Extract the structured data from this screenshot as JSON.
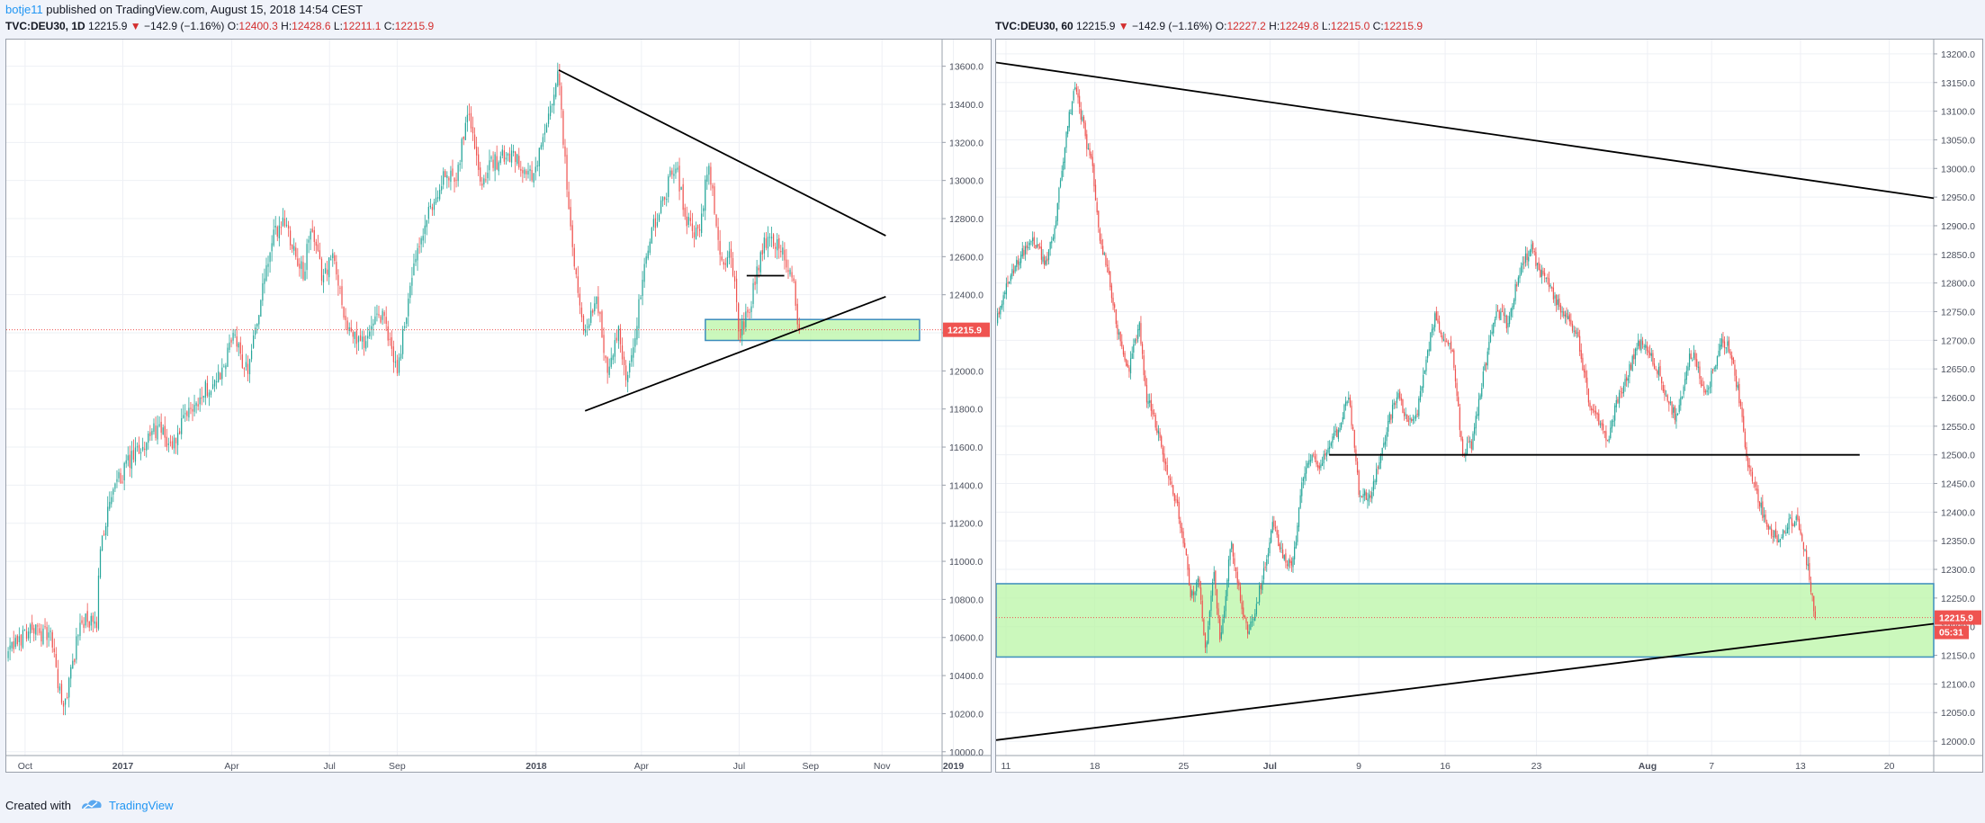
{
  "header": {
    "author": "botje11",
    "published_text": " published on TradingView.com, August 15, 2018 14:54 CEST"
  },
  "footer": {
    "created_with": "Created with",
    "brand": "TradingView"
  },
  "colors": {
    "up": "#26a69a",
    "down": "#ef5350",
    "zone_fill": "#b9f6a5",
    "zone_border": "#3c8dbc",
    "price_tag": "#ef5350"
  },
  "panels": [
    {
      "symbol": "TVC:DEU30, 1D",
      "last": "12215.9",
      "arrow": "▼",
      "change": "−142.9 (−1.16%)",
      "o_label": "O:",
      "o": "12400.3",
      "h_label": "H:",
      "h": "12428.6",
      "l_label": "L:",
      "l": "12211.1",
      "c_label": "C:",
      "c": "12215.9",
      "price_tag": "12215.9"
    },
    {
      "symbol": "TVC:DEU30, 60",
      "last": "12215.9",
      "arrow": "▼",
      "change": "−142.9 (−1.16%)",
      "o_label": "O:",
      "o": "12227.2",
      "h_label": "H:",
      "h": "12249.8",
      "l_label": "L:",
      "l": "12215.0",
      "c_label": "C:",
      "c": "12215.9",
      "price_tag": "12215.9",
      "countdown": "05:31"
    }
  ],
  "chart_data": [
    {
      "type": "candlestick",
      "interval": "1D",
      "ylim": [
        9980,
        13740
      ],
      "xlim": [
        0,
        24.9
      ],
      "y_ticks": [
        "10000.0",
        "10200.0",
        "10400.0",
        "10600.0",
        "10800.0",
        "11000.0",
        "11200.0",
        "11400.0",
        "11600.0",
        "11800.0",
        "12000.0",
        "12200.0",
        "12400.0",
        "12600.0",
        "12800.0",
        "13000.0",
        "13200.0",
        "13400.0",
        "13600.0"
      ],
      "x_ticks": [
        {
          "label": "Oct",
          "x": 0.5,
          "bold": false
        },
        {
          "label": "2017",
          "x": 3.1,
          "bold": true
        },
        {
          "label": "Apr",
          "x": 6.0,
          "bold": false
        },
        {
          "label": "Jul",
          "x": 8.6,
          "bold": false
        },
        {
          "label": "Sep",
          "x": 10.4,
          "bold": false
        },
        {
          "label": "2018",
          "x": 14.1,
          "bold": true
        },
        {
          "label": "Apr",
          "x": 16.9,
          "bold": false
        },
        {
          "label": "Jul",
          "x": 19.5,
          "bold": false
        },
        {
          "label": "Sep",
          "x": 21.4,
          "bold": false
        },
        {
          "label": "Nov",
          "x": 23.3,
          "bold": false
        },
        {
          "label": "2019",
          "x": 25.2,
          "bold": true
        }
      ],
      "price_path": [
        [
          0.0,
          10500
        ],
        [
          0.6,
          10650
        ],
        [
          1.2,
          10600
        ],
        [
          1.5,
          10200
        ],
        [
          2.0,
          10700
        ],
        [
          2.4,
          10650
        ],
        [
          2.5,
          11100
        ],
        [
          2.9,
          11400
        ],
        [
          3.2,
          11500
        ],
        [
          3.6,
          11600
        ],
        [
          4.0,
          11700
        ],
        [
          4.4,
          11600
        ],
        [
          4.9,
          11800
        ],
        [
          5.3,
          11900
        ],
        [
          5.8,
          12000
        ],
        [
          6.0,
          12200
        ],
        [
          6.4,
          12000
        ],
        [
          6.8,
          12400
        ],
        [
          7.1,
          12700
        ],
        [
          7.4,
          12800
        ],
        [
          7.9,
          12500
        ],
        [
          8.1,
          12750
        ],
        [
          8.4,
          12500
        ],
        [
          8.7,
          12600
        ],
        [
          9.1,
          12200
        ],
        [
          9.5,
          12150
        ],
        [
          10.0,
          12300
        ],
        [
          10.4,
          12000
        ],
        [
          10.8,
          12500
        ],
        [
          11.2,
          12800
        ],
        [
          11.6,
          13000
        ],
        [
          12.0,
          13050
        ],
        [
          12.3,
          13400
        ],
        [
          12.6,
          13000
        ],
        [
          13.0,
          13100
        ],
        [
          13.5,
          13150
        ],
        [
          14.0,
          13000
        ],
        [
          14.4,
          13300
        ],
        [
          14.7,
          13550
        ],
        [
          14.9,
          13000
        ],
        [
          15.2,
          12400
        ],
        [
          15.4,
          12200
        ],
        [
          15.7,
          12400
        ],
        [
          16.0,
          12000
        ],
        [
          16.3,
          12200
        ],
        [
          16.5,
          11900
        ],
        [
          16.8,
          12300
        ],
        [
          17.1,
          12700
        ],
        [
          17.5,
          12900
        ],
        [
          17.8,
          13100
        ],
        [
          18.1,
          12800
        ],
        [
          18.4,
          12700
        ],
        [
          18.7,
          13100
        ],
        [
          19.0,
          12550
        ],
        [
          19.3,
          12600
        ],
        [
          19.5,
          12200
        ],
        [
          19.8,
          12350
        ],
        [
          20.1,
          12650
        ],
        [
          20.4,
          12700
        ],
        [
          20.7,
          12600
        ],
        [
          20.9,
          12500
        ],
        [
          21.1,
          12216
        ]
      ],
      "trendlines": [
        {
          "from": [
            14.7,
            13580
          ],
          "to": [
            23.4,
            12710
          ]
        },
        {
          "from": [
            15.4,
            11790
          ],
          "to": [
            23.4,
            12390
          ]
        },
        {
          "from": [
            19.7,
            12500
          ],
          "to": [
            20.7,
            12500
          ]
        }
      ],
      "zone": {
        "from": [
          18.6,
          12160
        ],
        "to": [
          24.3,
          12270
        ]
      },
      "last_price": 12215.9
    },
    {
      "type": "candlestick",
      "interval": "60",
      "ylim": [
        11975,
        13225
      ],
      "xlim": [
        0,
        38
      ],
      "y_ticks": [
        "12000.0",
        "12050.0",
        "12100.0",
        "12150.0",
        "12200.0",
        "12250.0",
        "12300.0",
        "12350.0",
        "12400.0",
        "12450.0",
        "12500.0",
        "12550.0",
        "12600.0",
        "12650.0",
        "12700.0",
        "12750.0",
        "12800.0",
        "12850.0",
        "12900.0",
        "12950.0",
        "13000.0",
        "13050.0",
        "13100.0",
        "13150.0",
        "13200.0"
      ],
      "x_ticks": [
        {
          "label": "11",
          "x": 0.4,
          "bold": false
        },
        {
          "label": "18",
          "x": 4.0,
          "bold": false
        },
        {
          "label": "25",
          "x": 7.6,
          "bold": false
        },
        {
          "label": "Jul",
          "x": 11.1,
          "bold": true
        },
        {
          "label": "9",
          "x": 14.7,
          "bold": false
        },
        {
          "label": "16",
          "x": 18.2,
          "bold": false
        },
        {
          "label": "23",
          "x": 21.9,
          "bold": false
        },
        {
          "label": "Aug",
          "x": 26.4,
          "bold": true
        },
        {
          "label": "7",
          "x": 29.0,
          "bold": false
        },
        {
          "label": "13",
          "x": 32.6,
          "bold": false
        },
        {
          "label": "20",
          "x": 36.2,
          "bold": false
        }
      ],
      "price_path": [
        [
          0.0,
          12730
        ],
        [
          0.5,
          12800
        ],
        [
          1.0,
          12850
        ],
        [
          1.5,
          12880
        ],
        [
          2.0,
          12830
        ],
        [
          2.4,
          12900
        ],
        [
          2.8,
          13050
        ],
        [
          3.2,
          13150
        ],
        [
          3.5,
          13080
        ],
        [
          3.9,
          13000
        ],
        [
          4.2,
          12880
        ],
        [
          4.6,
          12800
        ],
        [
          5.0,
          12700
        ],
        [
          5.4,
          12650
        ],
        [
          5.8,
          12730
        ],
        [
          6.1,
          12600
        ],
        [
          6.5,
          12550
        ],
        [
          6.9,
          12480
        ],
        [
          7.3,
          12420
        ],
        [
          7.6,
          12350
        ],
        [
          7.9,
          12250
        ],
        [
          8.2,
          12280
        ],
        [
          8.5,
          12150
        ],
        [
          8.8,
          12300
        ],
        [
          9.1,
          12170
        ],
        [
          9.5,
          12350
        ],
        [
          9.8,
          12280
        ],
        [
          10.2,
          12180
        ],
        [
          10.6,
          12250
        ],
        [
          10.9,
          12300
        ],
        [
          11.2,
          12380
        ],
        [
          11.6,
          12330
        ],
        [
          12.0,
          12300
        ],
        [
          12.4,
          12450
        ],
        [
          12.8,
          12500
        ],
        [
          13.1,
          12480
        ],
        [
          13.5,
          12510
        ],
        [
          13.9,
          12550
        ],
        [
          14.3,
          12600
        ],
        [
          14.7,
          12440
        ],
        [
          15.1,
          12420
        ],
        [
          15.5,
          12480
        ],
        [
          15.9,
          12560
        ],
        [
          16.3,
          12600
        ],
        [
          16.7,
          12550
        ],
        [
          17.1,
          12580
        ],
        [
          17.4,
          12660
        ],
        [
          17.8,
          12750
        ],
        [
          18.1,
          12700
        ],
        [
          18.5,
          12680
        ],
        [
          18.9,
          12500
        ],
        [
          19.3,
          12520
        ],
        [
          19.6,
          12600
        ],
        [
          20.0,
          12700
        ],
        [
          20.3,
          12750
        ],
        [
          20.7,
          12730
        ],
        [
          21.0,
          12780
        ],
        [
          21.3,
          12840
        ],
        [
          21.7,
          12860
        ],
        [
          22.0,
          12820
        ],
        [
          22.4,
          12800
        ],
        [
          22.8,
          12760
        ],
        [
          23.2,
          12740
        ],
        [
          23.6,
          12700
        ],
        [
          24.0,
          12600
        ],
        [
          24.4,
          12560
        ],
        [
          24.8,
          12520
        ],
        [
          25.2,
          12600
        ],
        [
          25.6,
          12640
        ],
        [
          26.0,
          12700
        ],
        [
          26.4,
          12680
        ],
        [
          26.8,
          12650
        ],
        [
          27.2,
          12600
        ],
        [
          27.6,
          12560
        ],
        [
          28.0,
          12660
        ],
        [
          28.3,
          12680
        ],
        [
          28.7,
          12600
        ],
        [
          29.1,
          12650
        ],
        [
          29.4,
          12700
        ],
        [
          29.8,
          12680
        ],
        [
          30.1,
          12600
        ],
        [
          30.5,
          12480
        ],
        [
          30.9,
          12420
        ],
        [
          31.3,
          12370
        ],
        [
          31.7,
          12350
        ],
        [
          32.1,
          12380
        ],
        [
          32.5,
          12390
        ],
        [
          32.9,
          12300
        ],
        [
          33.2,
          12216
        ]
      ],
      "trendlines": [
        {
          "from": [
            0.0,
            13185
          ],
          "to": [
            38,
            12948
          ]
        },
        {
          "from": [
            0.0,
            12002
          ],
          "to": [
            38,
            12205
          ]
        },
        {
          "from": [
            13.5,
            12500
          ],
          "to": [
            35.0,
            12500
          ]
        }
      ],
      "zone": {
        "from": [
          0.0,
          12147
        ],
        "to": [
          38,
          12275
        ]
      },
      "last_price": 12215.9
    }
  ]
}
